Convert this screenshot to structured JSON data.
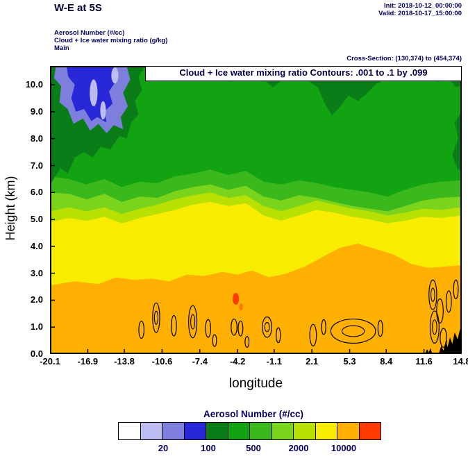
{
  "header": {
    "title": "W-E at 5S",
    "init_line": "Init: 2018-10-12_00:00:00",
    "valid_line": "Valid: 2018-10-17_15:00:00",
    "field_line1": "Aerosol Number (#/cc)",
    "field_line2": "Cloud + Ice water mixing ratio (g/kg)",
    "field_line3": "Main",
    "cross_section": "Cross-Section: (130,374) to (454,374)"
  },
  "plot": {
    "inner_title": "Cloud + Ice water mixing ratio Contours: .001 to .1 by .099",
    "xlabel": "longitude",
    "ylabel": "Height (km)"
  },
  "colorbar": {
    "title": "Aerosol Number (#/cc)",
    "tick_labels": [
      "20",
      "100",
      "500",
      "2000",
      "10000"
    ],
    "tick_cell_boundaries": [
      2,
      4,
      6,
      8,
      10
    ],
    "colors": [
      "#ffffff",
      "#bcbcf2",
      "#7e7edd",
      "#2828d8",
      "#0a7d19",
      "#12a312",
      "#3ab81c",
      "#7ad41c",
      "#b8e000",
      "#f8ec00",
      "#ffb000",
      "#ff3c00"
    ]
  },
  "chart_data": {
    "type": "heatmap",
    "title": "Cloud + Ice water mixing ratio Contours: .001 to .1 by .099",
    "xlabel": "longitude",
    "ylabel": "Height (km)",
    "xlim": [
      -20.1,
      14.8
    ],
    "ylim": [
      0,
      10.7
    ],
    "x_ticks": [
      -20.1,
      -16.9,
      -13.8,
      -10.6,
      -7.4,
      -4.2,
      -1.1,
      2.1,
      5.3,
      8.4,
      11.6,
      14.8
    ],
    "x_tick_labels": [
      "-20.1",
      "-16.9",
      "-13.8",
      "-10.6",
      "-7.4",
      "-4.2",
      "-1.1",
      "2.1",
      "5.3",
      "8.4",
      "11.6",
      "14.8"
    ],
    "y_ticks": [
      0,
      1,
      2,
      3,
      4,
      5,
      6,
      7,
      8,
      9,
      10
    ],
    "y_tick_labels": [
      "0.0",
      "1.0",
      "2.0",
      "3.0",
      "4.0",
      "5.0",
      "6.0",
      "7.0",
      "8.0",
      "9.0",
      "10.0"
    ],
    "fill_variable": "Aerosol Number (#/cc)",
    "contour_variable": "Cloud + Ice water mixing ratio (g/kg)",
    "contour_levels": [
      0.001,
      0.1
    ],
    "colorbar_values": [
      20,
      100,
      500,
      2000,
      10000
    ],
    "colors": {
      "base_green": "#12a312",
      "dark_green": "#0a7d19",
      "blue_mid": "#7e7edd",
      "blue_deep": "#2828d8",
      "lavender": "#bcbcf2",
      "contour_line": "#000000",
      "terrain": "#000000"
    },
    "bands": [
      {
        "name": "green-2",
        "color": "#3ab81c",
        "points": [
          [
            -20.1,
            6.6
          ],
          [
            -18.5,
            6.5
          ],
          [
            -17,
            6.3
          ],
          [
            -15.5,
            6.5
          ],
          [
            -14,
            6.2
          ],
          [
            -12.5,
            6.4
          ],
          [
            -11,
            6.35
          ],
          [
            -9.5,
            6.6
          ],
          [
            -8,
            6.7
          ],
          [
            -6.5,
            6.85
          ],
          [
            -5,
            6.65
          ],
          [
            -3.5,
            6.8
          ],
          [
            -2,
            6.4
          ],
          [
            -0.5,
            6.3
          ],
          [
            1,
            6.45
          ],
          [
            2.5,
            6.35
          ],
          [
            4,
            6.2
          ],
          [
            5.5,
            6.1
          ],
          [
            7,
            6.0
          ],
          [
            8.5,
            5.85
          ],
          [
            10,
            6.1
          ],
          [
            11.5,
            6.3
          ],
          [
            13,
            6.4
          ],
          [
            14.8,
            6.45
          ]
        ]
      },
      {
        "name": "light-green",
        "color": "#7ad41c",
        "points": [
          [
            -20.1,
            6.0
          ],
          [
            -18.5,
            5.95
          ],
          [
            -17,
            5.75
          ],
          [
            -15.5,
            5.95
          ],
          [
            -14,
            5.65
          ],
          [
            -12.5,
            5.85
          ],
          [
            -11,
            5.8
          ],
          [
            -9.5,
            6.05
          ],
          [
            -8,
            6.2
          ],
          [
            -6.5,
            6.3
          ],
          [
            -5,
            6.1
          ],
          [
            -3.5,
            6.25
          ],
          [
            -2,
            5.85
          ],
          [
            -0.5,
            5.7
          ],
          [
            1,
            5.9
          ],
          [
            2.5,
            5.8
          ],
          [
            4,
            5.65
          ],
          [
            5.5,
            5.5
          ],
          [
            7,
            5.4
          ],
          [
            8.5,
            5.3
          ],
          [
            10,
            5.5
          ],
          [
            11.5,
            5.7
          ],
          [
            13,
            5.8
          ],
          [
            14.8,
            5.85
          ]
        ]
      },
      {
        "name": "yellow-green",
        "color": "#b8e000",
        "points": [
          [
            -20.1,
            5.3
          ],
          [
            -18.5,
            5.45
          ],
          [
            -17,
            5.3
          ],
          [
            -15.5,
            5.45
          ],
          [
            -14,
            5.2
          ],
          [
            -12.5,
            5.4
          ],
          [
            -11,
            5.55
          ],
          [
            -9.5,
            5.75
          ],
          [
            -8,
            5.9
          ],
          [
            -6.5,
            6.0
          ],
          [
            -5,
            5.8
          ],
          [
            -3.5,
            5.9
          ],
          [
            -2,
            5.5
          ],
          [
            -0.5,
            5.3
          ],
          [
            1,
            5.5
          ],
          [
            2.5,
            5.7
          ],
          [
            4,
            5.55
          ],
          [
            5.5,
            5.4
          ],
          [
            7,
            5.3
          ],
          [
            8.5,
            5.15
          ],
          [
            10,
            5.25
          ],
          [
            11.5,
            5.4
          ],
          [
            13,
            5.35
          ],
          [
            14.8,
            5.45
          ]
        ]
      },
      {
        "name": "yellow",
        "color": "#f8ec00",
        "points": [
          [
            -20.1,
            4.9
          ],
          [
            -18.5,
            5.05
          ],
          [
            -17,
            4.95
          ],
          [
            -15.5,
            5.1
          ],
          [
            -14,
            4.85
          ],
          [
            -12.5,
            5.05
          ],
          [
            -11,
            5.2
          ],
          [
            -9.5,
            5.35
          ],
          [
            -8,
            5.55
          ],
          [
            -6.5,
            5.65
          ],
          [
            -5,
            5.5
          ],
          [
            -3.5,
            5.6
          ],
          [
            -2,
            5.15
          ],
          [
            -0.5,
            4.95
          ],
          [
            1,
            5.15
          ],
          [
            2.5,
            5.35
          ],
          [
            4,
            5.25
          ],
          [
            5.5,
            5.1
          ],
          [
            7,
            5.0
          ],
          [
            8.5,
            4.85
          ],
          [
            10,
            4.95
          ],
          [
            11.5,
            5.1
          ],
          [
            13,
            5.05
          ],
          [
            14.8,
            5.15
          ]
        ]
      },
      {
        "name": "orange",
        "color": "#ffb000",
        "points": [
          [
            -20.1,
            2.55
          ],
          [
            -18,
            2.7
          ],
          [
            -16,
            2.6
          ],
          [
            -14.5,
            2.85
          ],
          [
            -13,
            2.75
          ],
          [
            -11.5,
            2.8
          ],
          [
            -10,
            2.7
          ],
          [
            -8.5,
            2.95
          ],
          [
            -7,
            2.9
          ],
          [
            -5.5,
            3.05
          ],
          [
            -4.2,
            2.95
          ],
          [
            -3,
            3.1
          ],
          [
            -1.5,
            2.85
          ],
          [
            0,
            3.0
          ],
          [
            1.5,
            3.25
          ],
          [
            3,
            3.6
          ],
          [
            4.5,
            3.95
          ],
          [
            6,
            4.1
          ],
          [
            7.5,
            3.9
          ],
          [
            9,
            3.7
          ],
          [
            10.5,
            3.35
          ],
          [
            12,
            3.2
          ],
          [
            13.5,
            3.25
          ],
          [
            14.8,
            3.3
          ]
        ]
      }
    ],
    "features": {
      "dark_green_patches": [
        [
          [
            -20.1,
            6.3
          ],
          [
            -19.2,
            6.9
          ],
          [
            -18.6,
            6.7
          ],
          [
            -18,
            7.3
          ],
          [
            -17.2,
            7.5
          ],
          [
            -16.5,
            7.3
          ],
          [
            -15.8,
            7.7
          ],
          [
            -15,
            7.6
          ],
          [
            -14.2,
            8.1
          ],
          [
            -13.6,
            8.0
          ],
          [
            -13.2,
            8.6
          ],
          [
            -12.6,
            8.9
          ],
          [
            -12.9,
            9.4
          ],
          [
            -12.3,
            9.8
          ],
          [
            -12.6,
            10.3
          ],
          [
            -12.0,
            10.7
          ],
          [
            -20.1,
            10.7
          ]
        ],
        [
          [
            -11.2,
            10.7
          ],
          [
            -10.6,
            10.25
          ],
          [
            -9.8,
            10.45
          ],
          [
            -9.0,
            10.2
          ],
          [
            -8.2,
            10.45
          ],
          [
            -7.6,
            10.7
          ]
        ],
        [
          [
            -6.4,
            10.7
          ],
          [
            -5.8,
            10.3
          ],
          [
            -4.8,
            10.1
          ],
          [
            -3.8,
            10.35
          ],
          [
            -3.2,
            10.7
          ]
        ],
        [
          [
            -2.6,
            10.7
          ],
          [
            -2.0,
            10.2
          ],
          [
            -1.2,
            9.9
          ],
          [
            -0.4,
            10.2
          ],
          [
            0.2,
            10.7
          ]
        ],
        [
          [
            1.2,
            10.7
          ],
          [
            1.8,
            10.15
          ],
          [
            2.6,
            9.9
          ],
          [
            3.2,
            9.3
          ],
          [
            3.8,
            8.85
          ],
          [
            4.5,
            9.2
          ],
          [
            5.2,
            9.6
          ],
          [
            6.0,
            9.4
          ],
          [
            6.8,
            9.7
          ],
          [
            7.6,
            10.05
          ],
          [
            8.4,
            10.2
          ],
          [
            9.0,
            10.7
          ]
        ],
        [
          [
            11.5,
            10.7
          ],
          [
            12.0,
            10.3
          ],
          [
            12.8,
            10.1
          ],
          [
            13.6,
            10.3
          ],
          [
            14.3,
            9.9
          ],
          [
            14.8,
            10.0
          ],
          [
            14.8,
            10.7
          ]
        ],
        [
          [
            14.8,
            9.0
          ],
          [
            14.2,
            8.6
          ],
          [
            14.5,
            8.0
          ],
          [
            14.0,
            7.4
          ],
          [
            14.4,
            6.9
          ],
          [
            14.8,
            6.8
          ]
        ]
      ],
      "aerosol_low_mid": [
        [
          -19.6,
          10.7
        ],
        [
          -13.6,
          10.7
        ],
        [
          -13.3,
          10.2
        ],
        [
          -13.9,
          9.7
        ],
        [
          -13.5,
          9.2
        ],
        [
          -14.1,
          8.8
        ],
        [
          -13.9,
          8.35
        ],
        [
          -14.7,
          8.5
        ],
        [
          -15.3,
          8.2
        ],
        [
          -16.0,
          8.55
        ],
        [
          -16.7,
          8.3
        ],
        [
          -17.3,
          8.75
        ],
        [
          -18.1,
          8.55
        ],
        [
          -18.6,
          9.1
        ],
        [
          -19.3,
          9.35
        ],
        [
          -19.15,
          9.95
        ],
        [
          -19.75,
          10.25
        ]
      ],
      "aerosol_low_deep": [
        [
          -18.7,
          10.7
        ],
        [
          -14.6,
          10.7
        ],
        [
          -14.5,
          10.15
        ],
        [
          -15.1,
          9.75
        ],
        [
          -14.8,
          9.3
        ],
        [
          -15.5,
          9.0
        ],
        [
          -15.3,
          8.6
        ],
        [
          -16.1,
          8.8
        ],
        [
          -16.6,
          8.65
        ],
        [
          -17.2,
          9.1
        ],
        [
          -17.9,
          9.0
        ],
        [
          -18.3,
          9.5
        ],
        [
          -18.0,
          10.0
        ],
        [
          -18.55,
          10.3
        ]
      ],
      "aerosol_lowest_spots": [
        {
          "x": -16.4,
          "y": 9.7,
          "rx": 0.33,
          "ry": 0.5
        },
        {
          "x": -15.6,
          "y": 9.05,
          "rx": 0.24,
          "ry": 0.34
        },
        {
          "x": -14.6,
          "y": 10.35,
          "rx": 0.3,
          "ry": 0.3
        }
      ]
    },
    "hot_spots": [
      {
        "x": -4.35,
        "y": 2.05,
        "rx": 0.27,
        "ry": 0.22,
        "color": "#ff3c00"
      },
      {
        "x": -3.9,
        "y": 1.75,
        "rx": 0.16,
        "ry": 0.13,
        "color": "#ff7800"
      }
    ],
    "cloud_contours": [
      {
        "x": -12.35,
        "y": 0.9,
        "rx": 0.22,
        "ry": 0.32
      },
      {
        "x": -11.1,
        "y": 1.35,
        "rx": 0.3,
        "ry": 0.55,
        "double": true
      },
      {
        "x": -9.6,
        "y": 1.05,
        "rx": 0.22,
        "ry": 0.38
      },
      {
        "x": -8.0,
        "y": 1.2,
        "rx": 0.35,
        "ry": 0.6,
        "double": true
      },
      {
        "x": -6.7,
        "y": 0.95,
        "rx": 0.22,
        "ry": 0.33
      },
      {
        "x": -6.15,
        "y": 0.5,
        "rx": 0.17,
        "ry": 0.22
      },
      {
        "x": -4.5,
        "y": 1.0,
        "rx": 0.25,
        "ry": 0.3
      },
      {
        "x": -3.95,
        "y": 0.95,
        "rx": 0.2,
        "ry": 0.28
      },
      {
        "x": -3.4,
        "y": 0.45,
        "rx": 0.17,
        "ry": 0.2
      },
      {
        "x": -1.7,
        "y": 1.0,
        "rx": 0.4,
        "ry": 0.38,
        "double": true
      },
      {
        "x": -0.75,
        "y": 0.7,
        "rx": 0.18,
        "ry": 0.28
      },
      {
        "x": 2.2,
        "y": 0.7,
        "rx": 0.28,
        "ry": 0.4
      },
      {
        "x": 3.1,
        "y": 1.0,
        "rx": 0.18,
        "ry": 0.28
      },
      {
        "x": 5.6,
        "y": 0.85,
        "rx": 1.9,
        "ry": 0.45,
        "double": true
      },
      {
        "x": 7.9,
        "y": 0.95,
        "rx": 0.2,
        "ry": 0.3
      },
      {
        "x": 12.35,
        "y": 2.2,
        "rx": 0.33,
        "ry": 0.55,
        "double": true
      },
      {
        "x": 12.95,
        "y": 1.6,
        "rx": 0.28,
        "ry": 0.45
      },
      {
        "x": 12.5,
        "y": 1.0,
        "rx": 0.38,
        "ry": 0.6,
        "double": true
      },
      {
        "x": 13.25,
        "y": 0.6,
        "rx": 0.28,
        "ry": 0.35
      },
      {
        "x": 13.7,
        "y": 1.95,
        "rx": 0.22,
        "ry": 0.4
      },
      {
        "x": 14.3,
        "y": 2.4,
        "rx": 0.2,
        "ry": 0.35
      }
    ],
    "terrain": [
      [
        [
          12.85,
          0
        ],
        [
          13.05,
          0.3
        ],
        [
          13.25,
          0.12
        ],
        [
          13.45,
          0.5
        ],
        [
          13.6,
          0.25
        ],
        [
          13.8,
          0.62
        ],
        [
          14.0,
          0.38
        ],
        [
          14.2,
          0.8
        ],
        [
          14.45,
          0.55
        ],
        [
          14.65,
          0.92
        ],
        [
          14.8,
          0.88
        ],
        [
          14.8,
          0
        ]
      ],
      [
        [
          11.7,
          0
        ],
        [
          11.85,
          0.18
        ],
        [
          12.0,
          0.06
        ],
        [
          12.15,
          0.22
        ],
        [
          12.3,
          0
        ]
      ]
    ]
  }
}
